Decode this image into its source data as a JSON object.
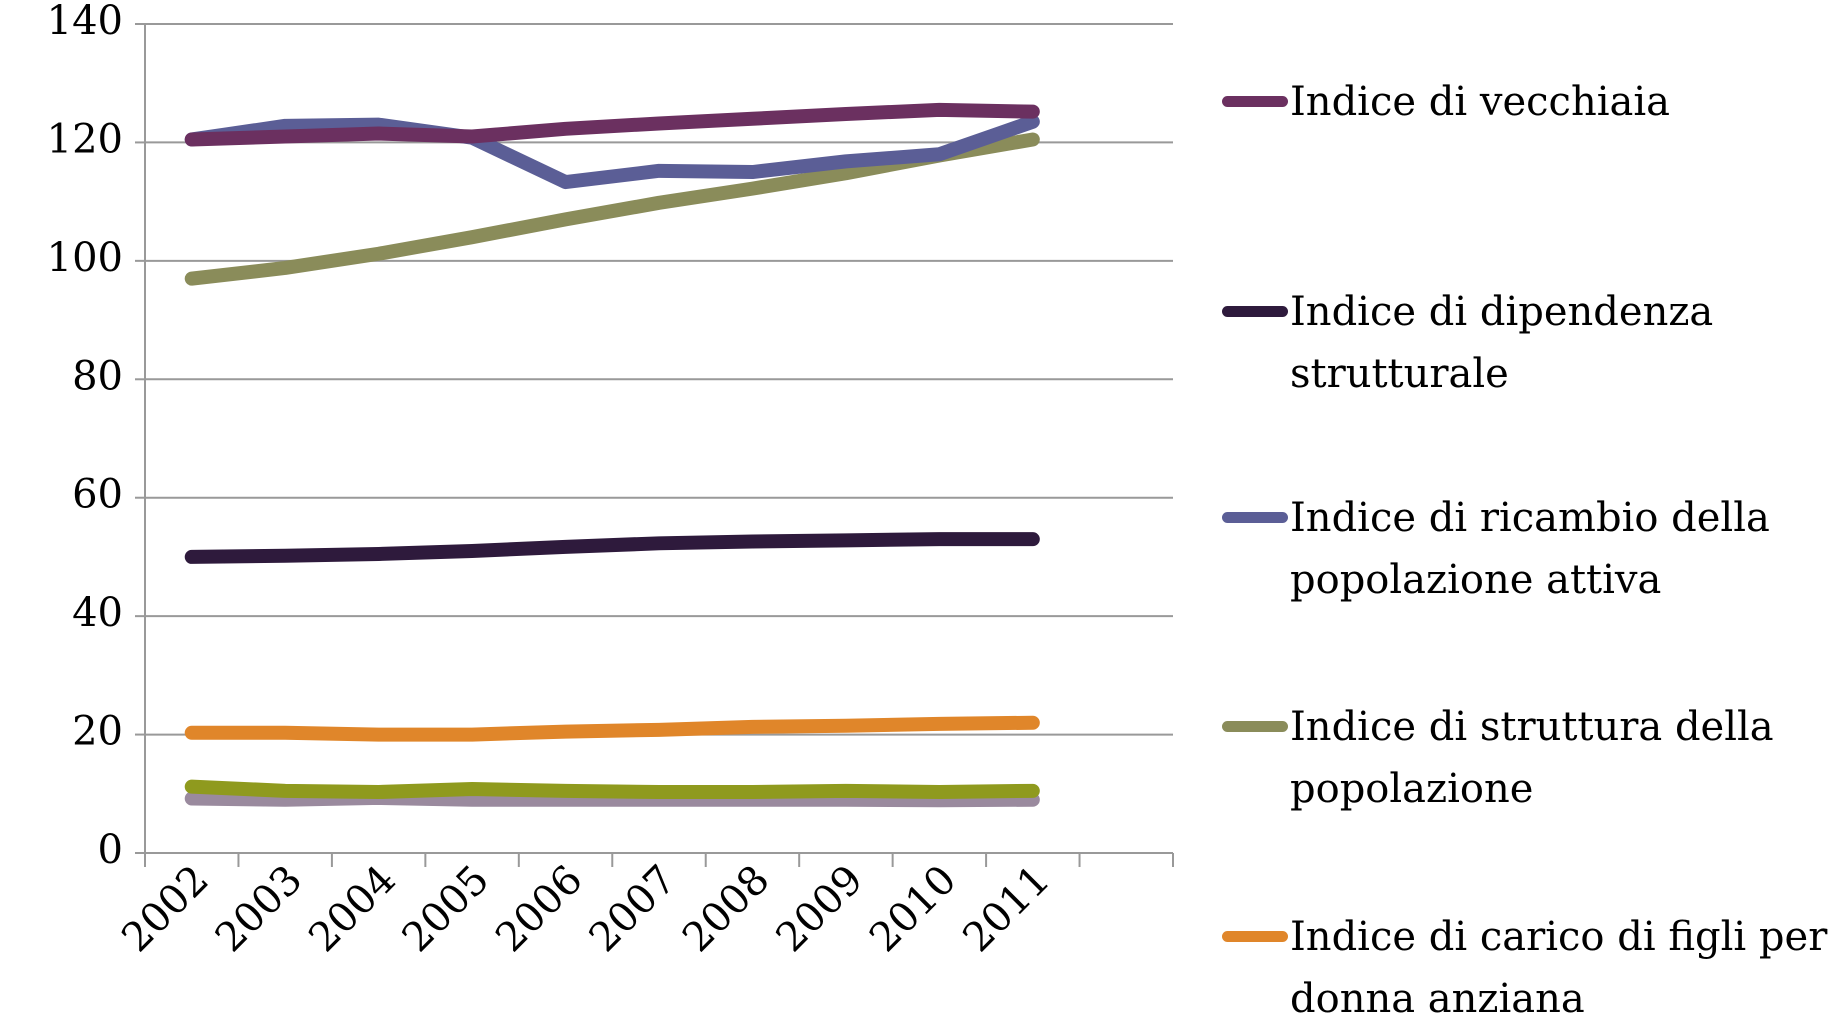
{
  "chart_data": {
    "type": "line",
    "categories": [
      "2002",
      "2003",
      "2004",
      "2005",
      "2006",
      "2007",
      "2008",
      "2009",
      "2010",
      "2011",
      null
    ],
    "series": [
      {
        "name": "Indice di vecchiaia",
        "color": "#6b3060",
        "values": [
          120.5,
          121,
          121.5,
          121,
          122.3,
          123.2,
          124,
          124.8,
          125.5,
          125.2,
          null
        ]
      },
      {
        "name": "Indice di dipendenza strutturale",
        "color": "#2e1a3c",
        "values": [
          50,
          50.2,
          50.5,
          51,
          51.7,
          52.3,
          52.6,
          52.8,
          53,
          53,
          null
        ]
      },
      {
        "name": "Indice di ricambio della popolazione attiva",
        "color": "#5b5e96",
        "values": [
          120.5,
          122.8,
          123,
          120.8,
          113.3,
          115.2,
          115,
          116.8,
          118,
          123.5,
          null
        ]
      },
      {
        "name": "Indice di struttura della popolazione",
        "color": "#8a8c5a",
        "values": [
          97,
          98.8,
          101.2,
          104,
          107,
          109.8,
          112.2,
          114.8,
          117.8,
          120.5,
          null
        ]
      },
      {
        "name": "Indice di carico di figli per donna anziana",
        "color": "#e0862a",
        "values": [
          20.3,
          20.3,
          20,
          20,
          20.5,
          20.8,
          21.3,
          21.5,
          21.8,
          22,
          null
        ]
      },
      {
        "color": "#8f9a1e",
        "values": [
          11.2,
          10.5,
          10.3,
          10.8,
          10.5,
          10.3,
          10.3,
          10.5,
          10.3,
          10.5,
          null
        ]
      },
      {
        "color": "#9a8a9e",
        "values": [
          9.2,
          9,
          9.3,
          9,
          9,
          9,
          9,
          9,
          8.9,
          9,
          null
        ]
      }
    ],
    "ylim": [
      0,
      140
    ],
    "yticks": [
      0,
      20,
      40,
      60,
      80,
      100,
      120,
      140
    ],
    "grid": true,
    "legend": "right"
  }
}
